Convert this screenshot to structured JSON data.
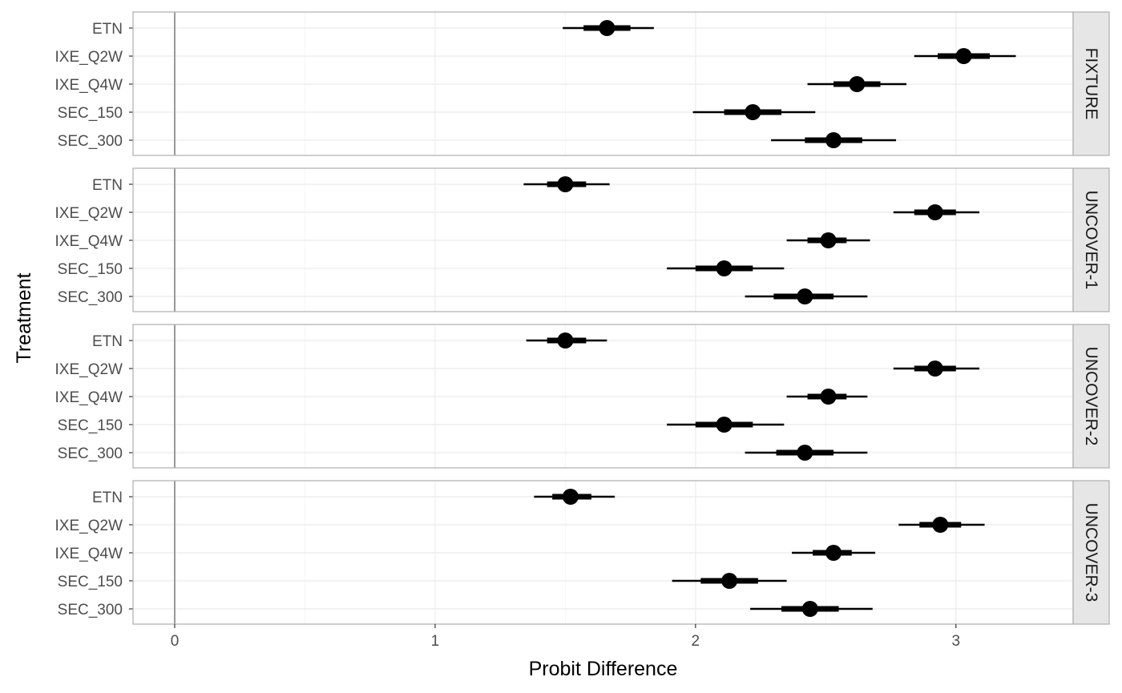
{
  "chart_data": {
    "type": "forest",
    "xlabel": "Probit Difference",
    "ylabel": "Treatment",
    "xlim": [
      -0.16,
      3.45
    ],
    "x_ticks": [
      0,
      1,
      2,
      3
    ],
    "reference_line": 0,
    "grid": true,
    "categories": [
      "ETN",
      "IXE_Q2W",
      "IXE_Q4W",
      "SEC_150",
      "SEC_300"
    ],
    "panels": [
      {
        "name": "FIXTURE",
        "points": [
          {
            "treatment": "ETN",
            "median": 1.66,
            "inner": [
              1.57,
              1.75
            ],
            "outer": [
              1.49,
              1.84
            ]
          },
          {
            "treatment": "IXE_Q2W",
            "median": 3.03,
            "inner": [
              2.93,
              3.13
            ],
            "outer": [
              2.84,
              3.23
            ]
          },
          {
            "treatment": "IXE_Q4W",
            "median": 2.62,
            "inner": [
              2.53,
              2.71
            ],
            "outer": [
              2.43,
              2.81
            ]
          },
          {
            "treatment": "SEC_150",
            "median": 2.22,
            "inner": [
              2.11,
              2.33
            ],
            "outer": [
              1.99,
              2.46
            ]
          },
          {
            "treatment": "SEC_300",
            "median": 2.53,
            "inner": [
              2.42,
              2.64
            ],
            "outer": [
              2.29,
              2.77
            ]
          }
        ]
      },
      {
        "name": "UNCOVER-1",
        "points": [
          {
            "treatment": "ETN",
            "median": 1.5,
            "inner": [
              1.43,
              1.58
            ],
            "outer": [
              1.34,
              1.67
            ]
          },
          {
            "treatment": "IXE_Q2W",
            "median": 2.92,
            "inner": [
              2.84,
              3.0
            ],
            "outer": [
              2.76,
              3.09
            ]
          },
          {
            "treatment": "IXE_Q4W",
            "median": 2.51,
            "inner": [
              2.43,
              2.58
            ],
            "outer": [
              2.35,
              2.67
            ]
          },
          {
            "treatment": "SEC_150",
            "median": 2.11,
            "inner": [
              2.0,
              2.22
            ],
            "outer": [
              1.89,
              2.34
            ]
          },
          {
            "treatment": "SEC_300",
            "median": 2.42,
            "inner": [
              2.3,
              2.53
            ],
            "outer": [
              2.19,
              2.66
            ]
          }
        ]
      },
      {
        "name": "UNCOVER-2",
        "points": [
          {
            "treatment": "ETN",
            "median": 1.5,
            "inner": [
              1.43,
              1.58
            ],
            "outer": [
              1.35,
              1.66
            ]
          },
          {
            "treatment": "IXE_Q2W",
            "median": 2.92,
            "inner": [
              2.84,
              3.0
            ],
            "outer": [
              2.76,
              3.09
            ]
          },
          {
            "treatment": "IXE_Q4W",
            "median": 2.51,
            "inner": [
              2.43,
              2.58
            ],
            "outer": [
              2.35,
              2.66
            ]
          },
          {
            "treatment": "SEC_150",
            "median": 2.11,
            "inner": [
              2.0,
              2.22
            ],
            "outer": [
              1.89,
              2.34
            ]
          },
          {
            "treatment": "SEC_300",
            "median": 2.42,
            "inner": [
              2.31,
              2.53
            ],
            "outer": [
              2.19,
              2.66
            ]
          }
        ]
      },
      {
        "name": "UNCOVER-3",
        "points": [
          {
            "treatment": "ETN",
            "median": 1.52,
            "inner": [
              1.45,
              1.6
            ],
            "outer": [
              1.38,
              1.69
            ]
          },
          {
            "treatment": "IXE_Q2W",
            "median": 2.94,
            "inner": [
              2.86,
              3.02
            ],
            "outer": [
              2.78,
              3.11
            ]
          },
          {
            "treatment": "IXE_Q4W",
            "median": 2.53,
            "inner": [
              2.45,
              2.6
            ],
            "outer": [
              2.37,
              2.69
            ]
          },
          {
            "treatment": "SEC_150",
            "median": 2.13,
            "inner": [
              2.02,
              2.24
            ],
            "outer": [
              1.91,
              2.35
            ]
          },
          {
            "treatment": "SEC_300",
            "median": 2.44,
            "inner": [
              2.33,
              2.55
            ],
            "outer": [
              2.21,
              2.68
            ]
          }
        ]
      }
    ],
    "colors": {
      "point": "#000000",
      "reference_line": "#999999",
      "grid_major": "#ebebeb",
      "grid_minor": "#f5f5f5",
      "panel_border": "#b3b3b3",
      "strip_fill": "#e6e6e6"
    }
  }
}
